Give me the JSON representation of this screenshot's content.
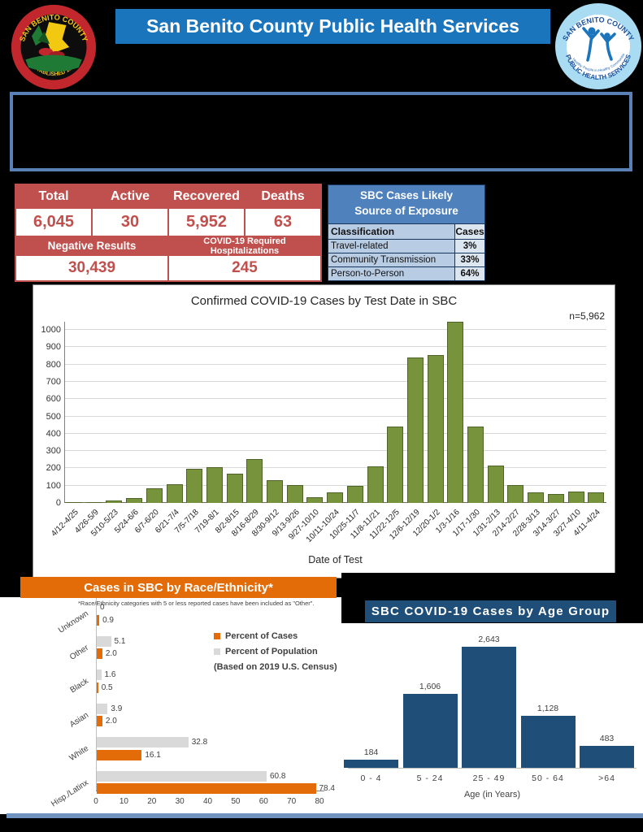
{
  "header": {
    "title": "San Benito County Public Health Services",
    "county_seal": {
      "top_arc": "SAN BENITO COUNTY",
      "bottom_arc": "ESTABLISHED 1874"
    },
    "health_logo": {
      "top_arc": "SAN BENITO COUNTY",
      "bottom_arc": "PUBLIC HEALTH SERVICES",
      "center_arc": "Healthy People in Healthy Communities"
    }
  },
  "summary_table": {
    "primary": [
      {
        "label": "Total",
        "value": "6,045"
      },
      {
        "label": "Active",
        "value": "30"
      },
      {
        "label": "Recovered",
        "value": "5,952"
      },
      {
        "label": "Deaths",
        "value": "63"
      }
    ],
    "secondary": [
      {
        "label": "Negative Results",
        "value": "30,439"
      },
      {
        "label": "COVID-19 Required Hospitalizations",
        "value": "245"
      }
    ]
  },
  "exposure_table": {
    "title_line1": "SBC Cases Likely",
    "title_line2": "Source of Exposure",
    "col_headers": [
      "Classification",
      "Cases"
    ],
    "rows": [
      {
        "classification": "Travel-related",
        "cases": "3%"
      },
      {
        "classification": "Community Transmission",
        "cases": "33%"
      },
      {
        "classification": "Person-to-Person",
        "cases": "64%"
      }
    ]
  },
  "chart_data": [
    {
      "id": "cases_by_test_date",
      "type": "bar",
      "title": "Confirmed COVID-19 Cases by Test Date in SBC",
      "annotation": "n=5,962",
      "xlabel": "Date of Test",
      "ylim": [
        0,
        1000
      ],
      "ytick_step": 100,
      "grid": true,
      "bar_color": "#77933C",
      "categories": [
        "4/12-4/25",
        "4/26-5/9",
        "5/10-5/23",
        "5/24-6/6",
        "6/7-6/20",
        "6/21-7/4",
        "7/5-7/18",
        "7/19-8/1",
        "8/2-8/15",
        "8/16-8/29",
        "8/30-9/12",
        "9/13-9/26",
        "9/27-10/10",
        "10/11-10/24",
        "10/25-11/7",
        "11/8-11/21",
        "11/22-12/5",
        "12/6-12/19",
        "12/20-1/2",
        "1/3-1/16",
        "1/17-1/30",
        "1/31-2/13",
        "2/14-2/27",
        "2/28-3/13",
        "3/14-3/27",
        "3/27-4/10",
        "4/11-4/24"
      ],
      "values": [
        5,
        5,
        15,
        30,
        85,
        110,
        195,
        205,
        170,
        255,
        130,
        105,
        35,
        60,
        100,
        210,
        440,
        840,
        855,
        1045,
        440,
        215,
        105,
        60,
        50,
        65,
        60
      ]
    },
    {
      "id": "cases_by_race_ethnicity",
      "type": "bar-horizontal",
      "title": "Cases in SBC by Race/Ethnicity*",
      "footnote": "*Race/Ethnicity categories with 5 or less reported cases have been included as \"Other\".",
      "categories": [
        "Unknown",
        "Other",
        "Black",
        "Asian",
        "White",
        "Hisp./Latinx"
      ],
      "series": [
        {
          "name": "Percent of Population",
          "color": "#D9D9D9",
          "values": [
            0,
            5.1,
            1.6,
            3.9,
            32.8,
            60.8
          ],
          "labels": [
            "0",
            "5.1",
            "1.6",
            "3.9",
            "32.8",
            "60.8"
          ]
        },
        {
          "name": "Percent of Cases",
          "color": "#E36C09",
          "values": [
            0.9,
            2.0,
            0.5,
            2.0,
            16.1,
            78.4
          ],
          "labels": [
            "0.9",
            "2.0",
            "0.5",
            "2.0",
            "16.1",
            "78.4"
          ]
        }
      ],
      "legend_order": [
        "Percent of Cases",
        "Percent of Population"
      ],
      "legend_note": "(Based on 2019 U.S. Census)",
      "xlim": [
        0,
        80
      ],
      "xticks": [
        0,
        10,
        20,
        30,
        40,
        50,
        60,
        70,
        80
      ]
    },
    {
      "id": "cases_by_age_group",
      "type": "bar",
      "title": "SBC COVID-19 Cases by Age Group",
      "xlabel": "Age (in Years)",
      "bar_color": "#1F4E79",
      "categories": [
        "0 - 4",
        "5 - 24",
        "25 - 49",
        "50 - 64",
        ">64"
      ],
      "values": [
        184,
        1606,
        2643,
        1128,
        483
      ],
      "labels": [
        "184",
        "1,606",
        "2,643",
        "1,128",
        "483"
      ]
    }
  ],
  "colors": {
    "header_blue": "#1B75BC",
    "table_red": "#C0504D",
    "exposure_blue": "#4F81BD",
    "exposure_light_blue": "#B8CCE4",
    "chart_green": "#77933C",
    "orange": "#E36C09",
    "population_gray": "#D9D9D9",
    "dark_navy": "#1F4E79",
    "divider_blue": "#6F93BE"
  }
}
